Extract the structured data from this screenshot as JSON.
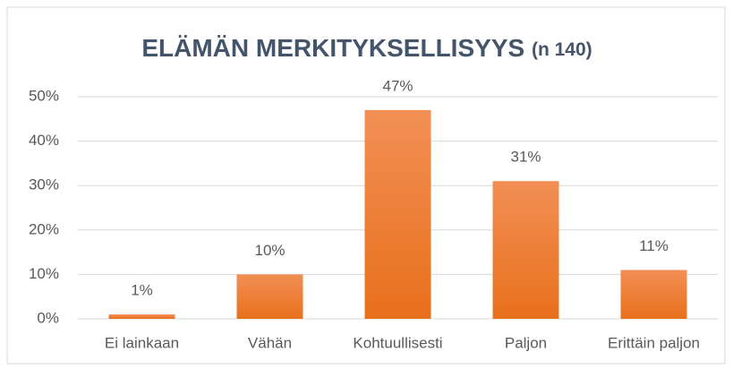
{
  "chart_data": {
    "type": "bar",
    "title": "ELÄMÄN MERKITYKSELLISYYS",
    "title_note": "(n 140)",
    "categories": [
      "Ei lainkaan",
      "Vähän",
      "Kohtuullisesti",
      "Paljon",
      "Erittäin paljon"
    ],
    "values": [
      1,
      10,
      47,
      31,
      11
    ],
    "value_labels": [
      "1%",
      "10%",
      "47%",
      "31%",
      "11%"
    ],
    "color": "#ed7d31",
    "ylim": [
      0,
      50
    ],
    "yticks": [
      {
        "value": 0,
        "label": "0%"
      },
      {
        "value": 10,
        "label": "10%"
      },
      {
        "value": 20,
        "label": "20%"
      },
      {
        "value": 30,
        "label": "30%"
      },
      {
        "value": 40,
        "label": "40%"
      },
      {
        "value": 50,
        "label": "50%"
      }
    ],
    "grid": true
  }
}
